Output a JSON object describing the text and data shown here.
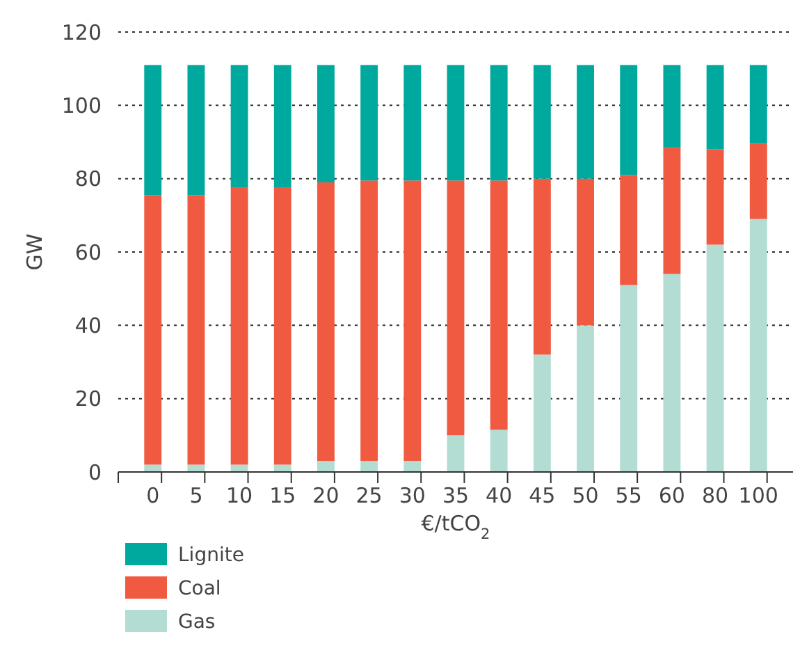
{
  "chart_data": {
    "type": "bar",
    "stacked": true,
    "xlabel": "€/tCO$_{2}$",
    "ylabel": "GW",
    "categories": [
      "0",
      "5",
      "10",
      "15",
      "20",
      "25",
      "30",
      "35",
      "40",
      "45",
      "50",
      "55",
      "60",
      "80",
      "100"
    ],
    "series": [
      {
        "name": "Gas",
        "color": "#b3ddd3",
        "values": [
          2,
          2,
          2,
          2,
          3,
          3,
          3,
          10,
          11.5,
          32,
          40,
          51,
          54,
          62,
          69
        ]
      },
      {
        "name": "Coal",
        "color": "#f05a40",
        "values": [
          73.5,
          73.5,
          75.5,
          75.5,
          76,
          76.5,
          76.5,
          69.5,
          68,
          48,
          40,
          30,
          34.5,
          26,
          20.5
        ]
      },
      {
        "name": "Lignite",
        "color": "#00a99d",
        "values": [
          35.5,
          35.5,
          33.5,
          33.5,
          32,
          31.5,
          31.5,
          31.5,
          31.5,
          31,
          31,
          30,
          22.5,
          23,
          21.5
        ]
      }
    ],
    "ylim": [
      0,
      120
    ],
    "yticks": [
      0,
      20,
      40,
      60,
      80,
      100,
      120
    ],
    "grid": "y",
    "legend": "bottom left"
  }
}
